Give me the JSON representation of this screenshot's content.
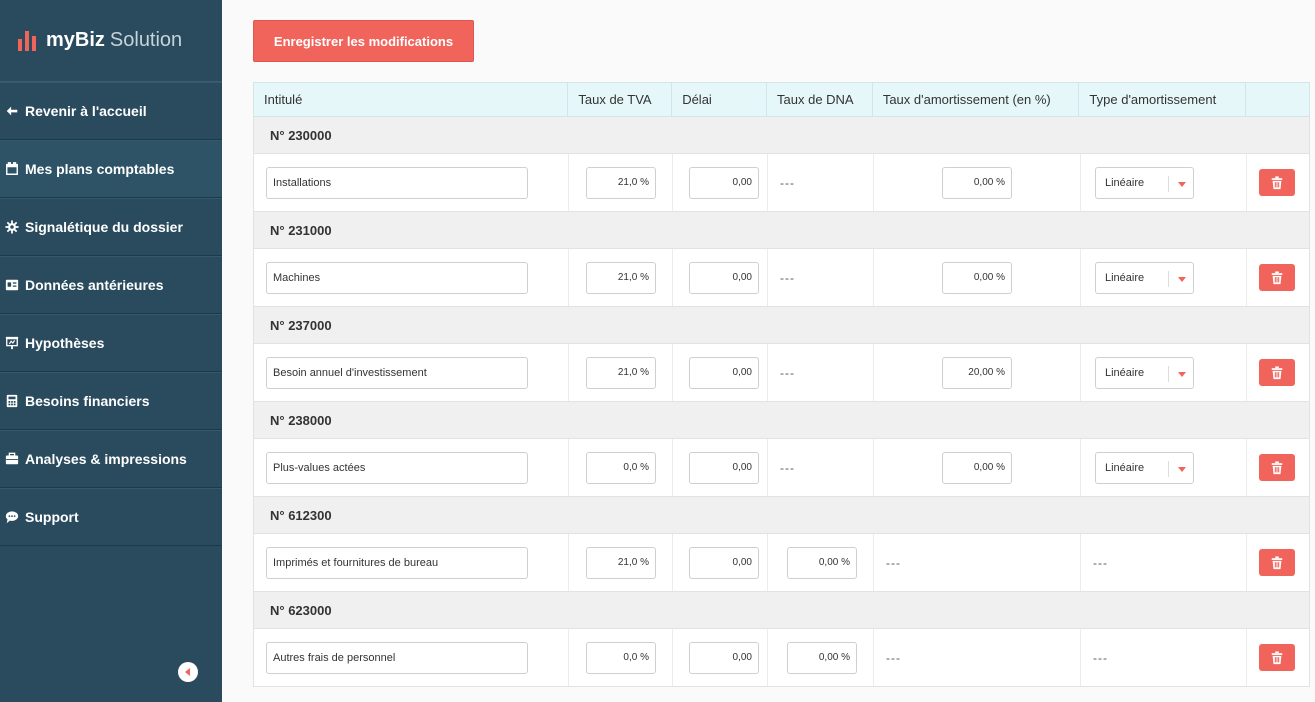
{
  "app": {
    "name": "myBiz",
    "name_suffix": "Solution",
    "brand_color": "#f0645c"
  },
  "sidebar": {
    "items": [
      {
        "label": "Revenir à l'accueil",
        "icon": "arrow-left-icon"
      },
      {
        "label": "Mes plans comptables",
        "icon": "calendar-icon",
        "active": true
      },
      {
        "label": "Signalétique du dossier",
        "icon": "gear-icon"
      },
      {
        "label": "Données antérieures",
        "icon": "id-card-icon"
      },
      {
        "label": "Hypothèses",
        "icon": "presentation-icon"
      },
      {
        "label": "Besoins financiers",
        "icon": "calculator-icon"
      },
      {
        "label": "Analyses & impressions",
        "icon": "briefcase-icon"
      },
      {
        "label": "Support",
        "icon": "chat-bubble-icon"
      }
    ],
    "collapse_icon": "caret-left-icon"
  },
  "toolbar": {
    "save_label": "Enregistrer les modifications"
  },
  "table": {
    "headers": [
      "Intitulé",
      "Taux de TVA",
      "Délai",
      "Taux de DNA",
      "Taux d'amortissement (en %)",
      "Type d'amortissement",
      ""
    ],
    "groups": [
      {
        "account": "N° 230000",
        "label": "Installations",
        "tva": "21,0 %",
        "delai": "0,00",
        "dna": "---",
        "amort": "0,00 %",
        "type": "Linéaire"
      },
      {
        "account": "N° 231000",
        "label": "Machines",
        "tva": "21,0 %",
        "delai": "0,00",
        "dna": "---",
        "amort": "0,00 %",
        "type": "Linéaire"
      },
      {
        "account": "N° 237000",
        "label": "Besoin annuel d'investissement",
        "tva": "21,0 %",
        "delai": "0,00",
        "dna": "---",
        "amort": "20,00 %",
        "type": "Linéaire"
      },
      {
        "account": "N° 238000",
        "label": "Plus-values actées",
        "tva": "0,0 %",
        "delai": "0,00",
        "dna": "---",
        "amort": "0,00 %",
        "type": "Linéaire"
      },
      {
        "account": "N° 612300",
        "label": "Imprimés et fournitures de bureau",
        "tva": "21,0 %",
        "delai": "0,00",
        "dna": "0,00 %",
        "amort": "---",
        "type": "---"
      },
      {
        "account": "N° 623000",
        "label": "Autres frais de personnel",
        "tva": "0,0 %",
        "delai": "0,00",
        "dna": "0,00 %",
        "amort": "---",
        "type": "---"
      }
    ],
    "delete_icon": "trash-icon"
  }
}
